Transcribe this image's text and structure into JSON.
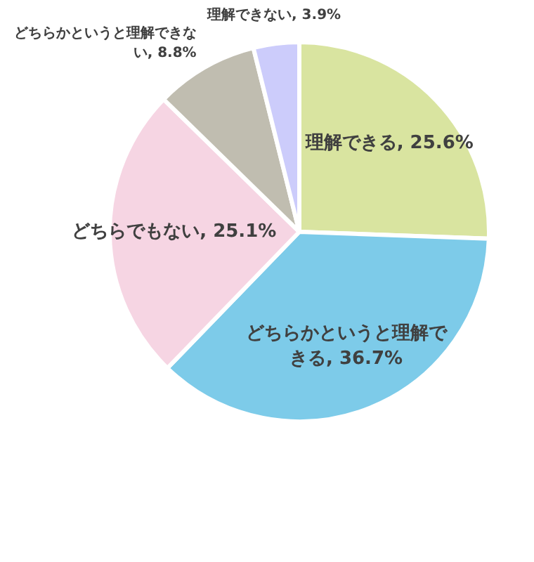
{
  "chart_data": {
    "type": "pie",
    "categories": [
      "理解できる",
      "どちらかというと理解できる",
      "どちらでもない",
      "どちらかというと理解できない",
      "理解できない"
    ],
    "values": [
      25.6,
      36.7,
      25.1,
      8.8,
      3.9
    ],
    "value_labels": [
      "25.6%",
      "36.7%",
      "25.1%",
      "8.8%",
      "3.9%"
    ],
    "colors": [
      "#d9e4a0",
      "#7dcbe9",
      "#f6d5e3",
      "#c0bdb0",
      "#ccccfb"
    ]
  }
}
